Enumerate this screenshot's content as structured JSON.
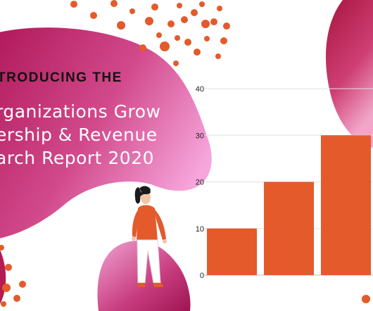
{
  "headline": {
    "kicker": "TRODUCING THE",
    "lines": [
      "rganizations Grow",
      "ership & Revenue",
      "arch Report 2020"
    ]
  },
  "colors": {
    "bar": "#e45a2b",
    "blob_dark": "#b01e52",
    "blob_light": "#f8a5d3",
    "dots": "#e45a2b"
  },
  "chart_data": {
    "type": "bar",
    "categories": [
      "",
      "",
      ""
    ],
    "values": [
      10,
      20,
      30
    ],
    "ylim": [
      0,
      40
    ],
    "yticks": [
      "0",
      "10",
      "20",
      "30",
      "40"
    ],
    "grid": true
  }
}
